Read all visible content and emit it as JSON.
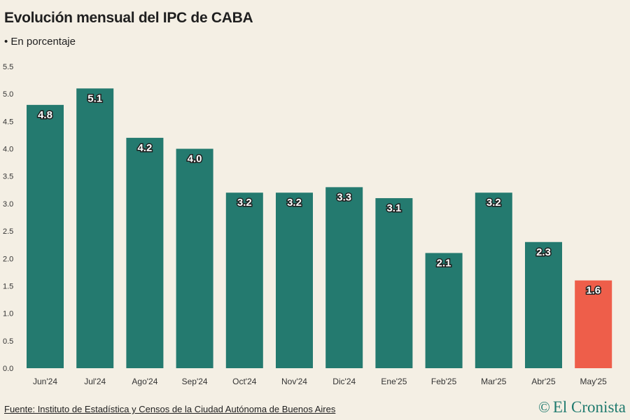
{
  "header": {
    "title": "Evolución mensual del IPC de CABA",
    "subtitle": "• En porcentaje"
  },
  "footer": {
    "source": "Fuente: Instituto de Estadística y Censos de la Ciudad Autónoma de Buenos Aires",
    "brand": "El Cronista",
    "brand_icon": "copyright-icon"
  },
  "colors": {
    "bar": "#247a6f",
    "highlight": "#ee5e4a",
    "label_text": "#ffffff",
    "label_outline": "#1f1f1f",
    "axis_text": "#333333",
    "background": "#f4efe4"
  },
  "chart_data": {
    "type": "bar",
    "title": "Evolución mensual del IPC de CABA",
    "subtitle": "En porcentaje",
    "categories": [
      "Jun'24",
      "Jul'24",
      "Ago'24",
      "Sep'24",
      "Oct'24",
      "Nov'24",
      "Dic'24",
      "Ene'25",
      "Feb'25",
      "Mar'25",
      "Abr'25",
      "May'25"
    ],
    "values": [
      4.8,
      5.1,
      4.2,
      4.0,
      3.2,
      3.2,
      3.3,
      3.1,
      2.1,
      3.2,
      2.3,
      1.6
    ],
    "value_labels": [
      "4.8",
      "5.1",
      "4.2",
      "4.0",
      "3.2",
      "3.2",
      "3.3",
      "3.1",
      "2.1",
      "3.2",
      "2.3",
      "1.6"
    ],
    "highlight_index": 11,
    "ylim": [
      0,
      5.5
    ],
    "yticks": [
      0,
      0.5,
      1,
      1.5,
      2,
      2.5,
      3,
      3.5,
      4,
      4.5,
      5,
      5.5
    ],
    "ytick_labels": [
      "0.0",
      "0.5",
      "1.0",
      "1.5",
      "2.0",
      "2.5",
      "3.0",
      "3.5",
      "4.0",
      "4.5",
      "5.0",
      "5.5"
    ],
    "grid": false,
    "legend": "none"
  }
}
